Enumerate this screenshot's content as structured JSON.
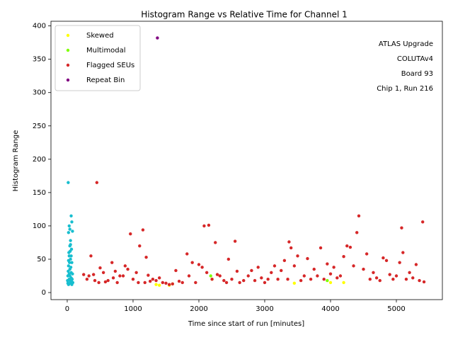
{
  "chart_data": {
    "type": "scatter",
    "title": "Histogram Range vs Relative Time for Channel 1",
    "xlabel": "Time since start of run [minutes]",
    "ylabel": "Histogram Range",
    "annotation": [
      "ATLAS Upgrade",
      "COLUTAv4",
      "Board 93",
      "Chip 1, Run 216"
    ],
    "xlim": [
      -247,
      5699
    ],
    "xticks": [
      0,
      1000,
      2000,
      3000,
      4000,
      5000
    ],
    "ylim": [
      -10.6,
      407
    ],
    "yticks": [
      0,
      50,
      100,
      150,
      200,
      250,
      300,
      350,
      400
    ],
    "legend": "upper left",
    "series": [
      {
        "color": "#17becf",
        "x": [
          15,
          20,
          30,
          40,
          60,
          70,
          80,
          50,
          40,
          65,
          30,
          50,
          70,
          20,
          40,
          60,
          10,
          30,
          50,
          70,
          20,
          40,
          60,
          80,
          15,
          35,
          55,
          75,
          25,
          45,
          10,
          5,
          85,
          30,
          60,
          50,
          20,
          40,
          65,
          25
        ],
        "y": [
          165,
          90,
          100,
          95,
          115,
          106,
          92,
          78,
          70,
          65,
          55,
          50,
          45,
          40,
          35,
          30,
          25,
          20,
          15,
          12,
          12,
          18,
          22,
          28,
          32,
          45,
          38,
          20,
          60,
          62,
          14,
          18,
          15,
          28,
          55,
          72,
          48,
          25,
          17,
          13
        ]
      },
      {
        "name": "Skewed",
        "color": "#ffff00",
        "x": [
          1350,
          1400,
          1550,
          1600,
          3450,
          4000,
          4200,
          2200
        ],
        "y": [
          12,
          11,
          11,
          13,
          14,
          15,
          15,
          20
        ]
      },
      {
        "name": "Multimodal",
        "color": "#7fff00",
        "x": [
          2180,
          3950
        ],
        "y": [
          25,
          18
        ]
      },
      {
        "name": "Flagged SEUs",
        "color": "#d62728",
        "x": [
          250,
          300,
          330,
          360,
          400,
          420,
          450,
          480,
          500,
          550,
          580,
          620,
          680,
          700,
          730,
          760,
          800,
          850,
          880,
          920,
          960,
          1000,
          1050,
          1080,
          1100,
          1150,
          1180,
          1200,
          1230,
          1260,
          1300,
          1350,
          1400,
          1450,
          1500,
          1550,
          1600,
          1650,
          1700,
          1750,
          1820,
          1850,
          1900,
          1950,
          2000,
          2050,
          2080,
          2120,
          2150,
          2200,
          2250,
          2280,
          2320,
          2380,
          2420,
          2450,
          2500,
          2550,
          2580,
          2620,
          2680,
          2750,
          2800,
          2850,
          2900,
          2950,
          3000,
          3050,
          3100,
          3150,
          3200,
          3250,
          3300,
          3350,
          3370,
          3400,
          3450,
          3500,
          3550,
          3600,
          3650,
          3700,
          3750,
          3800,
          3850,
          3900,
          3950,
          4000,
          4050,
          4100,
          4150,
          4200,
          4250,
          4300,
          4350,
          4400,
          4430,
          4500,
          4550,
          4600,
          4650,
          4700,
          4750,
          4800,
          4850,
          4900,
          4950,
          5000,
          5050,
          5080,
          5100,
          5150,
          5200,
          5250,
          5300,
          5350,
          5400,
          5420
        ],
        "y": [
          27,
          20,
          25,
          55,
          27,
          18,
          165,
          15,
          37,
          30,
          16,
          18,
          45,
          22,
          32,
          15,
          25,
          25,
          40,
          35,
          88,
          20,
          30,
          15,
          70,
          94,
          15,
          53,
          26,
          17,
          20,
          18,
          22,
          15,
          14,
          12,
          13,
          33,
          17,
          15,
          58,
          25,
          45,
          15,
          42,
          38,
          100,
          30,
          101,
          20,
          75,
          27,
          25,
          18,
          15,
          50,
          20,
          77,
          32,
          15,
          18,
          25,
          33,
          18,
          38,
          22,
          15,
          20,
          30,
          40,
          20,
          33,
          48,
          20,
          76,
          67,
          40,
          55,
          18,
          25,
          51,
          20,
          35,
          25,
          67,
          20,
          43,
          28,
          38,
          22,
          25,
          54,
          70,
          68,
          40,
          90,
          115,
          35,
          58,
          20,
          30,
          22,
          18,
          52,
          48,
          27,
          20,
          25,
          45,
          97,
          60,
          20,
          30,
          22,
          42,
          18,
          106,
          16
        ]
      },
      {
        "name": "Repeat Bin",
        "color": "#800080",
        "x": [
          1370
        ],
        "y": [
          382
        ]
      }
    ]
  }
}
